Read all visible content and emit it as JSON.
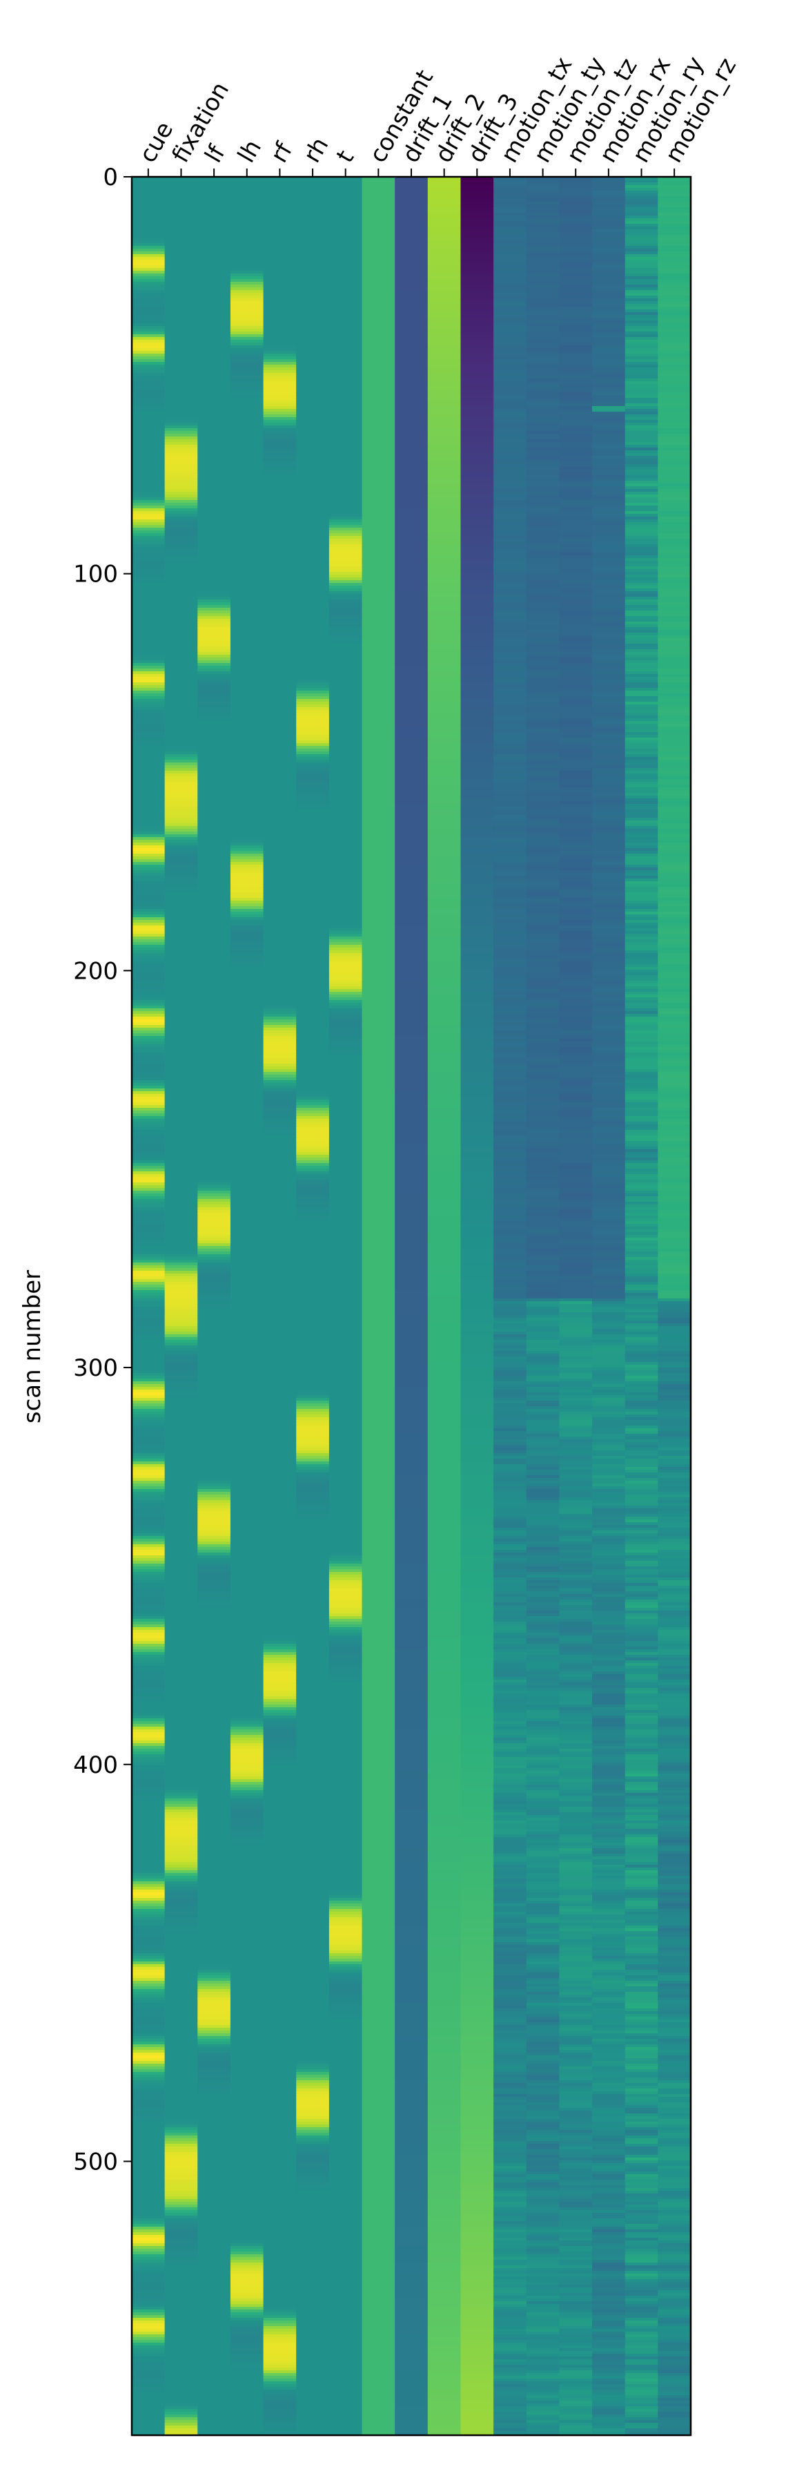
{
  "chart_data": {
    "type": "heatmap",
    "title": "",
    "xlabel": "",
    "ylabel": "scan number",
    "ylim": [
      0,
      569
    ],
    "yticks": [
      0,
      100,
      200,
      300,
      400,
      500
    ],
    "n_scans": 569,
    "columns": [
      "cue",
      "fixation",
      "lf",
      "lh",
      "rf",
      "rh",
      "t",
      "constant",
      "drift_1",
      "drift_2",
      "drift_3",
      "motion_tx",
      "motion_ty",
      "motion_tz",
      "motion_rx",
      "motion_ry",
      "motion_rz"
    ],
    "colormap": "viridis",
    "value_range": [
      -1,
      1
    ],
    "events": [
      {
        "column": "cue",
        "onsets": [
          15,
          36,
          79,
          120,
          163,
          183,
          206,
          226,
          246,
          270,
          300,
          320,
          340,
          361,
          386,
          426,
          446,
          467,
          513,
          535
        ],
        "duration": 4
      },
      {
        "column": "fixation",
        "onsets": [
          60,
          143,
          270,
          405,
          489,
          560
        ],
        "duration": 18
      },
      {
        "column": "lf",
        "onsets": [
          104,
          252,
          327,
          450
        ],
        "duration": 14
      },
      {
        "column": "lh",
        "onsets": [
          22,
          166,
          387,
          519
        ],
        "duration": 14
      },
      {
        "column": "rf",
        "onsets": [
          42,
          208,
          367,
          536
        ],
        "duration": 14
      },
      {
        "column": "rh",
        "onsets": [
          126,
          230,
          305,
          474
        ],
        "duration": 14
      },
      {
        "column": "t",
        "onsets": [
          84,
          188,
          346,
          431
        ],
        "duration": 14
      }
    ],
    "motion_break_scan": 283,
    "motion_spike_scan": 58
  },
  "colors": {
    "viridis": [
      "#440154",
      "#472d7b",
      "#3b528b",
      "#2c728e",
      "#21918c",
      "#28ae80",
      "#5ec962",
      "#addc30",
      "#fde725"
    ],
    "frame": "#000000",
    "background": "#ffffff"
  }
}
